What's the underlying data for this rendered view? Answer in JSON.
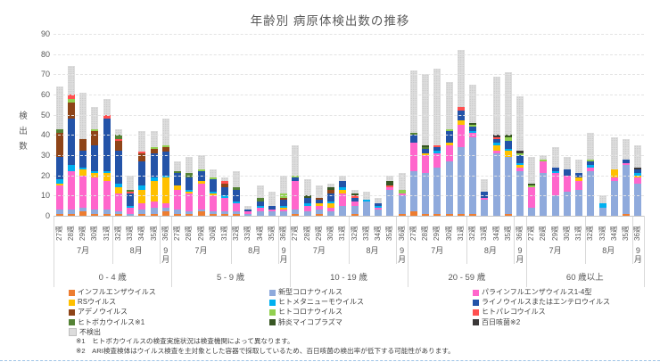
{
  "chart_data": {
    "type": "bar",
    "variant": "stacked-vertical",
    "title": "年齢別 病原体検出数の推移",
    "ylabel": "検出数",
    "ylim": [
      0,
      90
    ],
    "ytick_step": 10,
    "grid": "horizontal-dashed",
    "legend_position": "bottom",
    "weeks": [
      "27週",
      "28週",
      "29週",
      "30週",
      "31週",
      "32週",
      "33週",
      "34週",
      "35週",
      "36週"
    ],
    "months": [
      {
        "label": "7月",
        "weeks": 5
      },
      {
        "label": "8月",
        "weeks": 4
      },
      {
        "label": "9月",
        "weeks": 1
      }
    ],
    "series_order": [
      "influenza",
      "covid",
      "parainfluenza",
      "rs",
      "metapneumo",
      "rhino",
      "adeno",
      "hcov",
      "parecho",
      "boca",
      "mycoplasma",
      "pertussis",
      "negative"
    ],
    "series_meta": {
      "influenza": {
        "label": "インフルエンザウイルス",
        "color": "#ED7D31"
      },
      "covid": {
        "label": "新型コロナウイルス",
        "color": "#8FAADC"
      },
      "parainfluenza": {
        "label": "パラインフルエンザウイルス1-4型",
        "color": "#FF66CC"
      },
      "rs": {
        "label": "RSウイルス",
        "color": "#FFC000"
      },
      "metapneumo": {
        "label": "ヒトメタニューモウイルス",
        "color": "#00B0F0"
      },
      "rhino": {
        "label": "ライノウイルスまたはエンテロウイルス",
        "color": "#2353A8"
      },
      "adeno": {
        "label": "アデノウイルス",
        "color": "#8E4418"
      },
      "hcov": {
        "label": "ヒトコロナウイルス",
        "color": "#92D050"
      },
      "parecho": {
        "label": "ヒトパレコウイルス",
        "color": "#FF5050"
      },
      "boca": {
        "label": "ヒトボカウイルス※1",
        "color": "#548235"
      },
      "mycoplasma": {
        "label": "肺炎マイコプラズマ",
        "color": "#375623"
      },
      "pertussis": {
        "label": "百日咳菌※2",
        "color": "#3B3838"
      },
      "negative": {
        "label": "不検出",
        "color": "#DCDCDC"
      }
    },
    "legend_columns": [
      [
        "influenza",
        "rs",
        "adeno",
        "boca",
        "negative"
      ],
      [
        "covid",
        "metapneumo",
        "hcov",
        "mycoplasma"
      ],
      [
        "parainfluenza",
        "rhino",
        "parecho",
        "pertussis"
      ]
    ],
    "groups": [
      {
        "label": "0 - 4 歳",
        "values": {
          "influenza": [
            1,
            1,
            2,
            1,
            1,
            1,
            0,
            1,
            1,
            2
          ],
          "covid": [
            2,
            2,
            2,
            2,
            2,
            1,
            1,
            2,
            3,
            2
          ],
          "parainfluenza": [
            12,
            19,
            16,
            16,
            14,
            9,
            3,
            3,
            3,
            2
          ],
          "rs": [
            1,
            0,
            3,
            2,
            4,
            3,
            0,
            7,
            10,
            13
          ],
          "metapneumo": [
            2,
            3,
            1,
            1,
            1,
            2,
            1,
            2,
            2,
            1
          ],
          "rhino": [
            11,
            23,
            8,
            13,
            26,
            16,
            6,
            12,
            12,
            12
          ],
          "adeno": [
            12,
            8,
            6,
            7,
            0,
            5,
            0,
            4,
            2,
            2
          ],
          "hcov": [
            0,
            2,
            0,
            1,
            0,
            0,
            0,
            0,
            1,
            1
          ],
          "parecho": [
            0,
            2,
            0,
            0,
            2,
            1,
            1,
            1,
            0,
            0
          ],
          "boca": [
            2,
            0,
            0,
            0,
            0,
            2,
            1,
            0,
            0,
            0
          ],
          "mycoplasma": [
            0,
            0,
            0,
            0,
            0,
            0,
            0,
            0,
            0,
            0
          ],
          "pertussis": [
            0,
            0,
            0,
            0,
            0,
            0,
            0,
            0,
            0,
            0
          ],
          "negative": [
            21,
            14,
            23,
            11,
            8,
            3,
            7,
            10,
            8,
            13
          ]
        }
      },
      {
        "label": "5 - 9 歳",
        "values": {
          "influenza": [
            1,
            1,
            2,
            1,
            1,
            1,
            0,
            0,
            0,
            0
          ],
          "covid": [
            2,
            1,
            1,
            1,
            1,
            1,
            1,
            2,
            2,
            2
          ],
          "parainfluenza": [
            10,
            9,
            13,
            8,
            7,
            4,
            1,
            2,
            1,
            1
          ],
          "rs": [
            2,
            1,
            1,
            1,
            0,
            0,
            0,
            0,
            0,
            1
          ],
          "metapneumo": [
            0,
            1,
            0,
            1,
            1,
            1,
            0,
            1,
            0,
            1
          ],
          "rhino": [
            6,
            6,
            5,
            6,
            4,
            6,
            1,
            2,
            2,
            3
          ],
          "adeno": [
            0,
            0,
            0,
            0,
            2,
            0,
            0,
            0,
            0,
            1
          ],
          "hcov": [
            0,
            0,
            1,
            1,
            0,
            0,
            0,
            0,
            0,
            2
          ],
          "parecho": [
            0,
            0,
            0,
            0,
            1,
            0,
            0,
            0,
            0,
            0
          ],
          "boca": [
            1,
            2,
            0,
            0,
            0,
            1,
            0,
            2,
            0,
            0
          ],
          "mycoplasma": [
            0,
            0,
            0,
            0,
            0,
            0,
            0,
            0,
            0,
            0
          ],
          "pertussis": [
            0,
            0,
            0,
            0,
            0,
            0,
            0,
            0,
            0,
            0
          ],
          "negative": [
            5,
            8,
            7,
            4,
            2,
            8,
            2,
            6,
            7,
            9
          ]
        }
      },
      {
        "label": "10 - 19 歳",
        "values": {
          "influenza": [
            1,
            0,
            1,
            0,
            0,
            1,
            0,
            0,
            0,
            1
          ],
          "covid": [
            2,
            2,
            2,
            2,
            5,
            4,
            7,
            3,
            13,
            9
          ],
          "parainfluenza": [
            14,
            3,
            2,
            2,
            6,
            2,
            0,
            1,
            1,
            1
          ],
          "rs": [
            0,
            0,
            1,
            2,
            2,
            0,
            0,
            0,
            0,
            0
          ],
          "metapneumo": [
            0,
            1,
            0,
            1,
            1,
            0,
            1,
            1,
            0,
            0
          ],
          "rhino": [
            2,
            3,
            2,
            4,
            3,
            2,
            0,
            1,
            0,
            0
          ],
          "adeno": [
            0,
            0,
            1,
            2,
            0,
            0,
            0,
            0,
            0,
            0
          ],
          "hcov": [
            1,
            0,
            0,
            0,
            0,
            0,
            0,
            0,
            0,
            2
          ],
          "parecho": [
            0,
            0,
            0,
            0,
            0,
            1,
            0,
            0,
            1,
            0
          ],
          "boca": [
            0,
            0,
            0,
            0,
            0,
            0,
            0,
            0,
            0,
            0
          ],
          "mycoplasma": [
            0,
            1,
            0,
            1,
            0,
            1,
            0,
            0,
            2,
            0
          ],
          "pertussis": [
            0,
            0,
            0,
            0,
            0,
            0,
            0,
            0,
            0,
            0
          ],
          "negative": [
            15,
            8,
            6,
            2,
            3,
            2,
            4,
            3,
            3,
            8
          ]
        }
      },
      {
        "label": "20 - 59 歳",
        "values": {
          "influenza": [
            2,
            1,
            1,
            1,
            1,
            1,
            0,
            0,
            1,
            0
          ],
          "covid": [
            20,
            20,
            23,
            26,
            33,
            38,
            8,
            31,
            28,
            22
          ],
          "parainfluenza": [
            14,
            9,
            7,
            8,
            11,
            2,
            1,
            1,
            0,
            2
          ],
          "rs": [
            0,
            1,
            0,
            1,
            2,
            0,
            0,
            3,
            3,
            1
          ],
          "metapneumo": [
            0,
            0,
            1,
            0,
            0,
            1,
            0,
            1,
            1,
            1
          ],
          "rhino": [
            4,
            2,
            2,
            6,
            5,
            2,
            3,
            2,
            4,
            4
          ],
          "adeno": [
            0,
            0,
            0,
            0,
            0,
            0,
            0,
            0,
            0,
            0
          ],
          "hcov": [
            0,
            0,
            0,
            1,
            0,
            1,
            0,
            0,
            2,
            1
          ],
          "parecho": [
            0,
            0,
            1,
            0,
            2,
            0,
            0,
            1,
            0,
            0
          ],
          "boca": [
            1,
            1,
            0,
            0,
            0,
            0,
            0,
            0,
            0,
            0
          ],
          "mycoplasma": [
            0,
            1,
            0,
            0,
            0,
            1,
            0,
            0,
            1,
            0
          ],
          "pertussis": [
            0,
            0,
            0,
            0,
            0,
            0,
            0,
            1,
            0,
            1
          ],
          "negative": [
            31,
            35,
            38,
            23,
            28,
            19,
            6,
            29,
            31,
            27
          ]
        }
      },
      {
        "label": "60 歳以上",
        "values": {
          "influenza": [
            0,
            0,
            0,
            0,
            0,
            0,
            0,
            0,
            1,
            0
          ],
          "covid": [
            4,
            21,
            10,
            12,
            13,
            22,
            4,
            17,
            24,
            16
          ],
          "parainfluenza": [
            10,
            6,
            11,
            8,
            4,
            2,
            0,
            2,
            1,
            3
          ],
          "rs": [
            0,
            0,
            0,
            0,
            2,
            0,
            0,
            4,
            0,
            1
          ],
          "metapneumo": [
            0,
            0,
            1,
            0,
            0,
            1,
            2,
            0,
            0,
            1
          ],
          "rhino": [
            0,
            0,
            2,
            3,
            2,
            2,
            0,
            0,
            2,
            2
          ],
          "adeno": [
            0,
            0,
            0,
            0,
            0,
            0,
            0,
            0,
            0,
            0
          ],
          "hcov": [
            1,
            1,
            0,
            0,
            0,
            1,
            0,
            0,
            0,
            0
          ],
          "parecho": [
            0,
            0,
            0,
            0,
            0,
            0,
            0,
            0,
            0,
            0
          ],
          "boca": [
            0,
            0,
            0,
            0,
            0,
            0,
            0,
            0,
            0,
            0
          ],
          "mycoplasma": [
            1,
            0,
            0,
            0,
            0,
            0,
            0,
            0,
            0,
            0
          ],
          "pertussis": [
            0,
            0,
            0,
            0,
            0,
            0,
            0,
            0,
            0,
            1
          ],
          "negative": [
            13,
            2,
            10,
            6,
            7,
            13,
            4,
            16,
            10,
            11
          ]
        }
      }
    ],
    "footnotes": [
      "※1　ヒトボカウイルスの検査実施状況は検査機関によって異なります。",
      "※2　ARI検査検体はウイルス検査を主対象とした容器で採取しているため、百日咳菌の検出率が低下する可能性があります。"
    ]
  }
}
